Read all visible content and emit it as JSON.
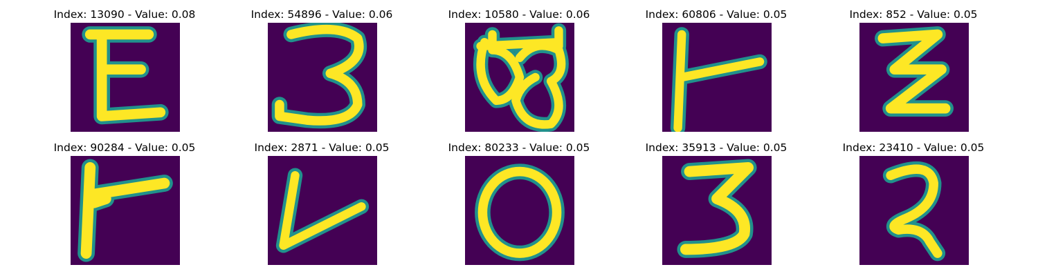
{
  "colors": {
    "background": "#440154",
    "edge": "#21918c",
    "stroke": "#fde725"
  },
  "panels": [
    {
      "title": "Index: 13090 - Value: 0.08",
      "glyph": "E"
    },
    {
      "title": "Index: 54896 - Value: 0.06",
      "glyph": "3"
    },
    {
      "title": "Index: 10580 - Value: 0.06",
      "glyph": "B"
    },
    {
      "title": "Index: 60806 - Value: 0.05",
      "glyph": "T-rotated"
    },
    {
      "title": "Index: 852 - Value: 0.05",
      "glyph": "Z"
    },
    {
      "title": "Index: 90284 - Value: 0.05",
      "glyph": "T-rotated"
    },
    {
      "title": "Index: 2871 - Value: 0.05",
      "glyph": "V"
    },
    {
      "title": "Index: 80233 - Value: 0.05",
      "glyph": "O"
    },
    {
      "title": "Index: 35913 - Value: 0.05",
      "glyph": "3"
    },
    {
      "title": "Index: 23410 - Value: 0.05",
      "glyph": "2"
    }
  ]
}
